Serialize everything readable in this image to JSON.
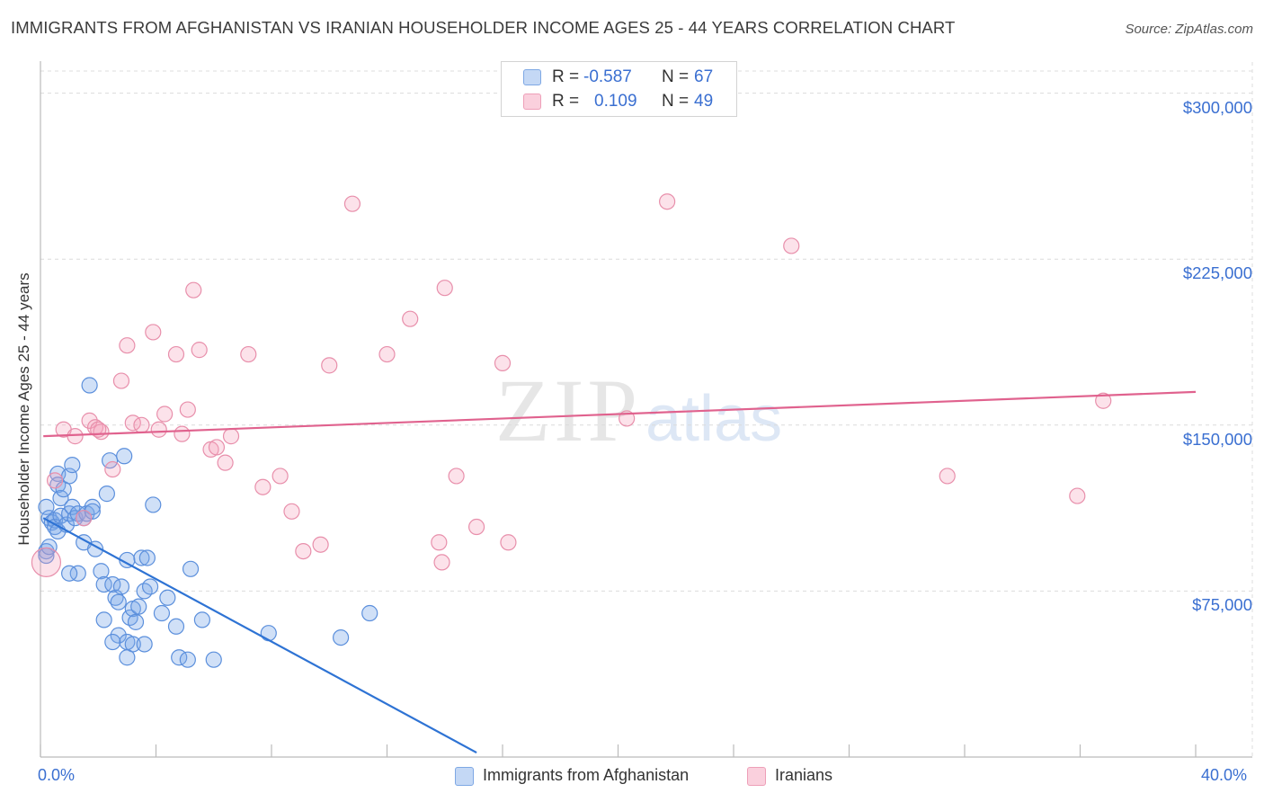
{
  "title": "IMMIGRANTS FROM AFGHANISTAN VS IRANIAN HOUSEHOLDER INCOME AGES 25 - 44 YEARS CORRELATION CHART",
  "source": "Source: ZipAtlas.com",
  "watermark": {
    "zip": "ZIP",
    "atlas": "atlas"
  },
  "legend": {
    "rows": [
      {
        "r_label": "R =",
        "r_value": "-0.587",
        "n_label": "N =",
        "n_value": "67",
        "color": "#a9c6f0"
      },
      {
        "r_label": "R =",
        "r_value": "0.109",
        "n_label": "N =",
        "n_value": "49",
        "color": "#f7b9cc"
      }
    ]
  },
  "bottom_legend": {
    "series1": "Immigrants from Afghanistan",
    "series2": "Iranians"
  },
  "colors": {
    "blue_fill": "rgba(120,165,232,0.35)",
    "blue_stroke": "#5b8fdc",
    "blue_line": "#2e73d4",
    "pink_fill": "rgba(245,160,185,0.30)",
    "pink_stroke": "#e88fab",
    "pink_line": "#e0628e",
    "axis_text": "#3a6fd1"
  },
  "chart_data": {
    "type": "scatter",
    "title": "IMMIGRANTS FROM AFGHANISTAN VS IRANIAN HOUSEHOLDER INCOME AGES 25 - 44 YEARS CORRELATION CHART",
    "xlabel": "",
    "ylabel": "Householder Income Ages 25 - 44 years",
    "xlim": [
      0,
      40
    ],
    "ylim": [
      0,
      310000
    ],
    "x_tick_labels": [
      "0.0%",
      "40.0%"
    ],
    "y_ticks": [
      75000,
      150000,
      225000,
      300000
    ],
    "y_tick_labels": [
      "$75,000",
      "$150,000",
      "$225,000",
      "$300,000"
    ],
    "grid": true,
    "legend_position": "top-center",
    "series": [
      {
        "name": "Immigrants from Afghanistan",
        "r": -0.587,
        "n": 67,
        "trend": {
          "x": [
            0.1,
            15.1
          ],
          "y": [
            108000,
            2000
          ]
        },
        "points": [
          [
            0.2,
            113000
          ],
          [
            0.3,
            108000
          ],
          [
            0.4,
            106000
          ],
          [
            0.5,
            107000
          ],
          [
            0.2,
            93000
          ],
          [
            0.2,
            91000
          ],
          [
            0.3,
            95000
          ],
          [
            0.5,
            104000
          ],
          [
            0.6,
            102000
          ],
          [
            0.6,
            128000
          ],
          [
            0.6,
            123000
          ],
          [
            0.7,
            109000
          ],
          [
            0.7,
            117000
          ],
          [
            0.8,
            121000
          ],
          [
            0.9,
            105000
          ],
          [
            1.0,
            127000
          ],
          [
            1.0,
            110000
          ],
          [
            1.1,
            132000
          ],
          [
            1.1,
            113000
          ],
          [
            1.2,
            108000
          ],
          [
            1.3,
            110000
          ],
          [
            1.3,
            83000
          ],
          [
            1.0,
            83000
          ],
          [
            1.5,
            108000
          ],
          [
            1.6,
            110000
          ],
          [
            1.5,
            97000
          ],
          [
            1.8,
            113000
          ],
          [
            1.8,
            111000
          ],
          [
            1.7,
            168000
          ],
          [
            1.9,
            94000
          ],
          [
            2.1,
            84000
          ],
          [
            2.2,
            78000
          ],
          [
            2.3,
            119000
          ],
          [
            2.4,
            134000
          ],
          [
            2.5,
            78000
          ],
          [
            2.6,
            72000
          ],
          [
            2.7,
            70000
          ],
          [
            2.8,
            77000
          ],
          [
            2.9,
            136000
          ],
          [
            3.0,
            89000
          ],
          [
            3.1,
            63000
          ],
          [
            3.2,
            67000
          ],
          [
            3.3,
            61000
          ],
          [
            3.4,
            68000
          ],
          [
            3.5,
            90000
          ],
          [
            3.6,
            75000
          ],
          [
            3.7,
            90000
          ],
          [
            3.8,
            77000
          ],
          [
            3.9,
            114000
          ],
          [
            4.2,
            65000
          ],
          [
            4.4,
            72000
          ],
          [
            4.7,
            59000
          ],
          [
            4.8,
            45000
          ],
          [
            5.1,
            44000
          ],
          [
            5.2,
            85000
          ],
          [
            5.6,
            62000
          ],
          [
            6.0,
            44000
          ],
          [
            7.9,
            56000
          ],
          [
            10.4,
            54000
          ],
          [
            11.4,
            65000
          ],
          [
            2.7,
            55000
          ],
          [
            3.0,
            52000
          ],
          [
            2.2,
            62000
          ],
          [
            3.2,
            51000
          ],
          [
            3.6,
            51000
          ],
          [
            2.5,
            52000
          ],
          [
            3.0,
            45000
          ]
        ]
      },
      {
        "name": "Iranians",
        "r": 0.109,
        "n": 49,
        "trend": {
          "x": [
            0.1,
            40.0
          ],
          "y": [
            145000,
            165000
          ]
        },
        "points": [
          [
            0.2,
            88000
          ],
          [
            0.5,
            125000
          ],
          [
            0.8,
            148000
          ],
          [
            1.2,
            145000
          ],
          [
            1.5,
            108000
          ],
          [
            1.7,
            152000
          ],
          [
            1.9,
            149000
          ],
          [
            2.1,
            147000
          ],
          [
            2.5,
            130000
          ],
          [
            2.8,
            170000
          ],
          [
            3.0,
            186000
          ],
          [
            3.2,
            151000
          ],
          [
            3.5,
            150000
          ],
          [
            3.9,
            192000
          ],
          [
            4.1,
            148000
          ],
          [
            4.3,
            155000
          ],
          [
            4.7,
            182000
          ],
          [
            4.9,
            146000
          ],
          [
            5.1,
            157000
          ],
          [
            5.3,
            211000
          ],
          [
            5.5,
            184000
          ],
          [
            5.9,
            139000
          ],
          [
            6.1,
            140000
          ],
          [
            6.4,
            133000
          ],
          [
            6.6,
            145000
          ],
          [
            7.2,
            182000
          ],
          [
            7.7,
            122000
          ],
          [
            8.3,
            127000
          ],
          [
            8.7,
            111000
          ],
          [
            9.1,
            93000
          ],
          [
            9.7,
            96000
          ],
          [
            10.0,
            177000
          ],
          [
            10.8,
            250000
          ],
          [
            12.0,
            182000
          ],
          [
            12.8,
            198000
          ],
          [
            13.8,
            97000
          ],
          [
            13.9,
            88000
          ],
          [
            14.0,
            212000
          ],
          [
            14.4,
            127000
          ],
          [
            15.1,
            104000
          ],
          [
            16.0,
            178000
          ],
          [
            16.2,
            97000
          ],
          [
            20.3,
            153000
          ],
          [
            21.7,
            251000
          ],
          [
            26.0,
            231000
          ],
          [
            31.4,
            127000
          ],
          [
            35.9,
            118000
          ],
          [
            36.8,
            161000
          ],
          [
            2.0,
            148000
          ]
        ]
      }
    ]
  }
}
